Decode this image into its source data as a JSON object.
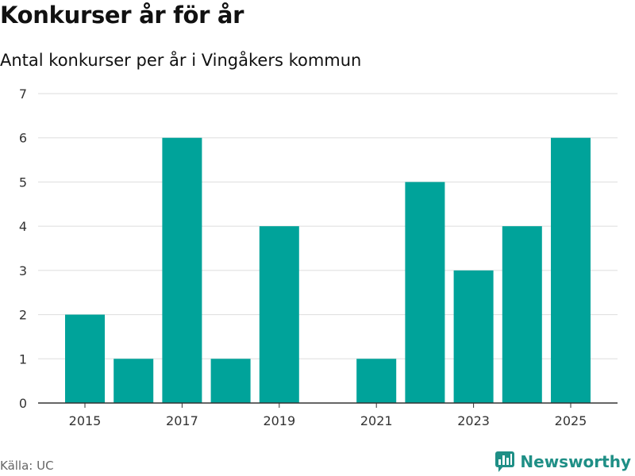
{
  "title": "Konkurser år för år",
  "subtitle": "Antal konkurser per år i Vingåkers kommun",
  "source": "Källa: UC",
  "brand": "Newsworthy",
  "colors": {
    "bar": "#00a39a",
    "grid": "#dddddd",
    "axis": "#333333",
    "brand": "#1f8f86"
  },
  "icons": {
    "brand_logo": "bar-chart-chat-icon"
  },
  "chart_data": {
    "type": "bar",
    "categories": [
      "2015",
      "2016",
      "2017",
      "2018",
      "2019",
      "2020",
      "2021",
      "2022",
      "2023",
      "2024",
      "2025"
    ],
    "values": [
      2,
      1,
      6,
      1,
      4,
      0,
      1,
      5,
      3,
      4,
      6
    ],
    "x_tick_labels": [
      "2015",
      "2017",
      "2019",
      "2021",
      "2023",
      "2025"
    ],
    "y_ticks": [
      0,
      1,
      2,
      3,
      4,
      5,
      6,
      7
    ],
    "ylim": [
      0,
      7
    ],
    "xlabel": "",
    "ylabel": ""
  }
}
